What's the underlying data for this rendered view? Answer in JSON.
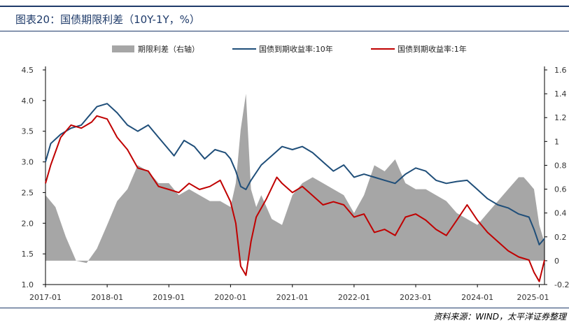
{
  "title": "图表20：国债期限利差（10Y-1Y，%）",
  "source": "资料来源：WIND，太平洋证券整理",
  "chart_data": {
    "type": "line",
    "x_tick_labels": [
      "2017-01",
      "2018-01",
      "2019-01",
      "2020-01",
      "2021-01",
      "2022-01",
      "2023-01",
      "2024-01",
      "2025-01"
    ],
    "y_left_ticks": [
      "4.5",
      "4.0",
      "3.5",
      "3.0",
      "2.5",
      "2.0",
      "1.5",
      "1.0"
    ],
    "y_right_ticks": [
      "1.6",
      "1.4",
      "1.2",
      "1",
      "0.8",
      "0.6",
      "0.4",
      "0.2",
      "0",
      "-0.2"
    ],
    "ylim_left": [
      1.0,
      4.5
    ],
    "ylim_right": [
      -0.2,
      1.6
    ],
    "colors": {
      "spread": "#a6a6a6",
      "y10": "#1f4e79",
      "y1": "#c00000"
    },
    "legend_position": "top",
    "series": [
      {
        "name": "期限利差（右轴）",
        "kind": "area",
        "axis": "right",
        "x": [
          "2017-01",
          "2017-03",
          "2017-05",
          "2017-07",
          "2017-09",
          "2017-11",
          "2018-01",
          "2018-03",
          "2018-05",
          "2018-07",
          "2018-09",
          "2018-11",
          "2019-01",
          "2019-03",
          "2019-05",
          "2019-07",
          "2019-09",
          "2019-11",
          "2020-01",
          "2020-02",
          "2020-03",
          "2020-04",
          "2020-05",
          "2020-06",
          "2020-07",
          "2020-09",
          "2020-11",
          "2021-01",
          "2021-03",
          "2021-05",
          "2021-07",
          "2021-09",
          "2021-11",
          "2022-01",
          "2022-03",
          "2022-05",
          "2022-07",
          "2022-09",
          "2022-11",
          "2023-01",
          "2023-03",
          "2023-05",
          "2023-07",
          "2023-09",
          "2023-11",
          "2024-01",
          "2024-03",
          "2024-05",
          "2024-07",
          "2024-09",
          "2024-10",
          "2024-11",
          "2024-12",
          "2025-01",
          "2025-02"
        ],
        "values": [
          0.55,
          0.45,
          0.2,
          0.0,
          -0.02,
          0.1,
          0.3,
          0.5,
          0.6,
          0.8,
          0.75,
          0.65,
          0.65,
          0.55,
          0.6,
          0.55,
          0.5,
          0.5,
          0.45,
          0.65,
          1.1,
          1.4,
          0.6,
          0.45,
          0.55,
          0.35,
          0.3,
          0.55,
          0.65,
          0.7,
          0.65,
          0.6,
          0.55,
          0.4,
          0.55,
          0.8,
          0.75,
          0.85,
          0.65,
          0.6,
          0.6,
          0.55,
          0.5,
          0.4,
          0.35,
          0.3,
          0.4,
          0.5,
          0.6,
          0.7,
          0.7,
          0.65,
          0.6,
          0.3,
          0.15
        ]
      },
      {
        "name": "国债到期收益率:10年",
        "kind": "line",
        "axis": "left",
        "x": [
          "2017-01",
          "2017-02",
          "2017-04",
          "2017-06",
          "2017-08",
          "2017-10",
          "2017-11",
          "2018-01",
          "2018-03",
          "2018-05",
          "2018-07",
          "2018-09",
          "2018-11",
          "2019-01",
          "2019-02",
          "2019-04",
          "2019-06",
          "2019-08",
          "2019-10",
          "2019-12",
          "2020-01",
          "2020-02",
          "2020-03",
          "2020-04",
          "2020-05",
          "2020-07",
          "2020-09",
          "2020-11",
          "2021-01",
          "2021-03",
          "2021-05",
          "2021-07",
          "2021-09",
          "2021-11",
          "2022-01",
          "2022-03",
          "2022-05",
          "2022-07",
          "2022-09",
          "2022-11",
          "2023-01",
          "2023-03",
          "2023-05",
          "2023-07",
          "2023-09",
          "2023-11",
          "2024-01",
          "2024-03",
          "2024-05",
          "2024-07",
          "2024-09",
          "2024-11",
          "2024-12",
          "2025-01",
          "2025-02"
        ],
        "values": [
          3.0,
          3.3,
          3.45,
          3.55,
          3.6,
          3.8,
          3.9,
          3.95,
          3.8,
          3.6,
          3.5,
          3.6,
          3.4,
          3.2,
          3.1,
          3.35,
          3.25,
          3.05,
          3.2,
          3.15,
          3.05,
          2.85,
          2.6,
          2.55,
          2.7,
          2.95,
          3.1,
          3.25,
          3.2,
          3.25,
          3.15,
          3.0,
          2.85,
          2.95,
          2.75,
          2.8,
          2.75,
          2.7,
          2.65,
          2.8,
          2.9,
          2.85,
          2.7,
          2.65,
          2.68,
          2.7,
          2.55,
          2.4,
          2.3,
          2.25,
          2.15,
          2.1,
          1.9,
          1.65,
          1.75
        ]
      },
      {
        "name": "国债到期收益率:1年",
        "kind": "line",
        "axis": "left",
        "x": [
          "2017-01",
          "2017-02",
          "2017-04",
          "2017-06",
          "2017-08",
          "2017-10",
          "2017-11",
          "2018-01",
          "2018-03",
          "2018-05",
          "2018-07",
          "2018-09",
          "2018-11",
          "2019-01",
          "2019-03",
          "2019-05",
          "2019-07",
          "2019-09",
          "2019-11",
          "2020-01",
          "2020-02",
          "2020-03",
          "2020-04",
          "2020-05",
          "2020-06",
          "2020-08",
          "2020-10",
          "2020-11",
          "2021-01",
          "2021-03",
          "2021-05",
          "2021-07",
          "2021-09",
          "2021-11",
          "2022-01",
          "2022-03",
          "2022-05",
          "2022-07",
          "2022-09",
          "2022-11",
          "2023-01",
          "2023-03",
          "2023-05",
          "2023-07",
          "2023-09",
          "2023-11",
          "2024-01",
          "2024-03",
          "2024-05",
          "2024-07",
          "2024-09",
          "2024-11",
          "2024-12",
          "2025-01",
          "2025-02"
        ],
        "values": [
          2.65,
          2.95,
          3.4,
          3.6,
          3.55,
          3.65,
          3.75,
          3.7,
          3.4,
          3.2,
          2.9,
          2.85,
          2.6,
          2.55,
          2.5,
          2.65,
          2.55,
          2.6,
          2.7,
          2.35,
          2.0,
          1.3,
          1.15,
          1.7,
          2.1,
          2.4,
          2.75,
          2.65,
          2.5,
          2.6,
          2.45,
          2.3,
          2.35,
          2.3,
          2.1,
          2.15,
          1.85,
          1.9,
          1.8,
          2.1,
          2.15,
          2.05,
          1.9,
          1.8,
          2.05,
          2.3,
          2.05,
          1.85,
          1.7,
          1.55,
          1.45,
          1.4,
          1.2,
          1.05,
          1.4
        ]
      }
    ]
  }
}
